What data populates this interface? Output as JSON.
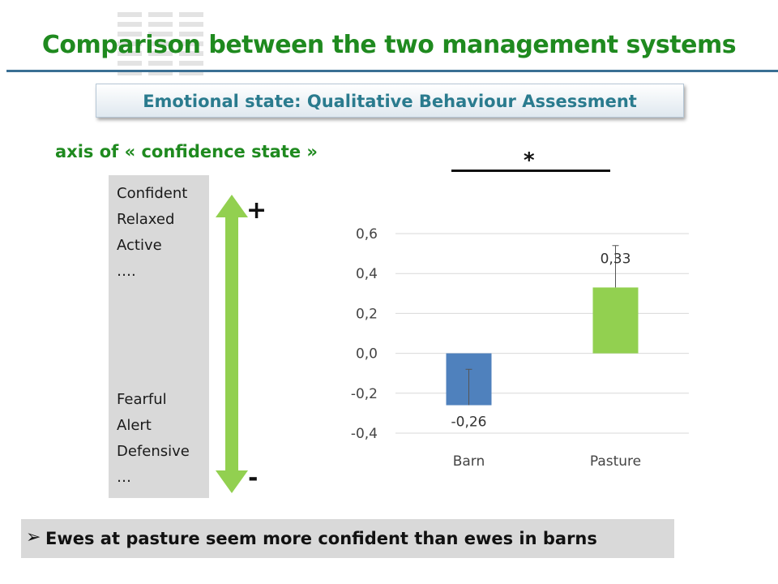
{
  "slide": {
    "title": "Comparison between the two management systems",
    "subtitle": "Emotional state: Qualitative Behaviour Assessment",
    "axis_heading": "axis of « confidence state »",
    "positive_traits": [
      "Confident",
      "Relaxed",
      "Active",
      "…."
    ],
    "negative_traits": [
      "Fearful",
      "Alert",
      "Defensive",
      "…"
    ],
    "plus_sign": "+",
    "minus_sign": "-",
    "significance_marker": "*",
    "conclusion_bullet": "➢",
    "conclusion": "Ewes at pasture seem more confident than ewes in barns",
    "colors": {
      "title": "#1f8a1f",
      "subtitle": "#2a7b8e",
      "arrow": "#92d050"
    }
  },
  "chart_data": {
    "type": "bar",
    "categories": [
      "Barn",
      "Pasture"
    ],
    "values": [
      -0.26,
      0.33
    ],
    "value_labels": [
      "-0,26",
      "0,33"
    ],
    "error_bars": [
      0.18,
      0.21
    ],
    "colors": [
      "#4f81bd",
      "#92d050"
    ],
    "ylim": [
      -0.4,
      0.6
    ],
    "yticks": [
      0.6,
      0.4,
      0.2,
      0.0,
      -0.2,
      -0.4
    ],
    "ytick_labels": [
      "0,6",
      "0,4",
      "0,2",
      "0,0",
      "-0,2",
      "-0,4"
    ],
    "grid": true,
    "title": "",
    "xlabel": "",
    "ylabel": ""
  }
}
